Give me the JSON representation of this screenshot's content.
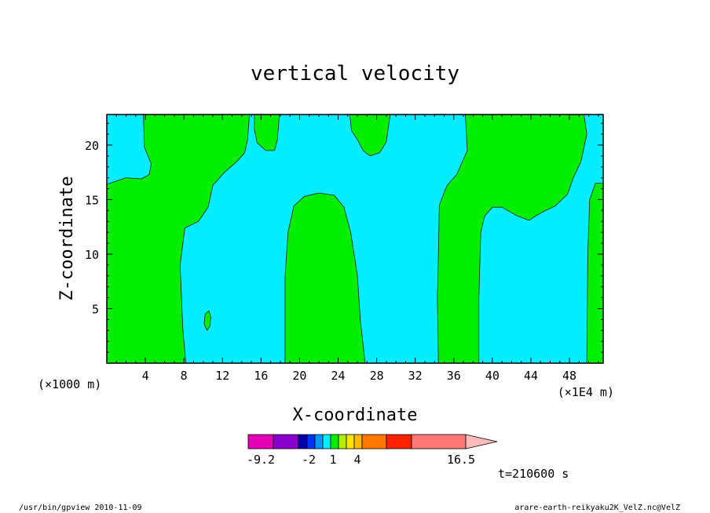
{
  "chart_data": {
    "type": "heatmap",
    "title": "vertical velocity",
    "xlabel": "X-coordinate",
    "ylabel": "Z-coordinate",
    "x_unit_left": "(×1000 m)",
    "x_unit_right": "(×1E4 m)",
    "xlim": [
      0,
      51.5
    ],
    "ylim": [
      0,
      22.8
    ],
    "x_ticks": [
      4,
      8,
      12,
      16,
      20,
      24,
      28,
      32,
      36,
      40,
      44,
      48
    ],
    "y_ticks": [
      5,
      10,
      15,
      20
    ],
    "colors": {
      "background_level": "#00eeff",
      "positive_level": "#00ee00"
    },
    "regions_positive": [
      {
        "name": "left-band",
        "points": [
          [
            0,
            0
          ],
          [
            8.2,
            0
          ],
          [
            7.9,
            3
          ],
          [
            7.6,
            9
          ],
          [
            8.1,
            12.4
          ],
          [
            9.5,
            13
          ],
          [
            10.5,
            14.3
          ],
          [
            11,
            16.3
          ],
          [
            12.2,
            17.5
          ],
          [
            13.5,
            18.5
          ],
          [
            14.3,
            19.3
          ],
          [
            14.6,
            20.5
          ],
          [
            14.8,
            22.8
          ],
          [
            3.8,
            22.8
          ],
          [
            3.9,
            19.8
          ],
          [
            4.6,
            18.3
          ],
          [
            4.4,
            17.3
          ],
          [
            3.6,
            16.9
          ],
          [
            2,
            17
          ],
          [
            0,
            16.4
          ]
        ]
      },
      {
        "name": "blob-x10",
        "points": [
          [
            10.4,
            3.0
          ],
          [
            10.7,
            3.4
          ],
          [
            10.8,
            4.2
          ],
          [
            10.6,
            4.8
          ],
          [
            10.2,
            4.5
          ],
          [
            10.1,
            3.6
          ]
        ]
      },
      {
        "name": "upper-blob-x17",
        "points": [
          [
            15.3,
            22.8
          ],
          [
            15.3,
            21.5
          ],
          [
            15.6,
            20.2
          ],
          [
            16.5,
            19.5
          ],
          [
            17.4,
            19.5
          ],
          [
            17.7,
            20.5
          ],
          [
            17.9,
            22.8
          ]
        ]
      },
      {
        "name": "upper-blob-x27",
        "points": [
          [
            25.2,
            22.8
          ],
          [
            25.4,
            21.3
          ],
          [
            26,
            20.5
          ],
          [
            26.6,
            19.5
          ],
          [
            27.3,
            19
          ],
          [
            28.3,
            19.3
          ],
          [
            29,
            20.3
          ],
          [
            29.4,
            22.8
          ]
        ]
      },
      {
        "name": "center-dome",
        "points": [
          [
            18.5,
            0
          ],
          [
            18.5,
            8
          ],
          [
            18.8,
            12
          ],
          [
            19.4,
            14.4
          ],
          [
            20.5,
            15.3
          ],
          [
            22,
            15.6
          ],
          [
            23.6,
            15.4
          ],
          [
            24.6,
            14.3
          ],
          [
            25.3,
            12
          ],
          [
            26,
            8
          ],
          [
            26.3,
            4
          ],
          [
            26.8,
            0
          ]
        ]
      },
      {
        "name": "right-band",
        "points": [
          [
            34.4,
            0
          ],
          [
            34.3,
            6
          ],
          [
            34.4,
            10
          ],
          [
            34.5,
            14.5
          ],
          [
            35.3,
            16.3
          ],
          [
            36.3,
            17.3
          ],
          [
            37.4,
            19.5
          ],
          [
            37.2,
            22.8
          ],
          [
            49.5,
            22.8
          ],
          [
            49.8,
            21
          ],
          [
            49.2,
            18.5
          ],
          [
            48.4,
            17
          ],
          [
            47.8,
            15.5
          ],
          [
            46.5,
            14.4
          ],
          [
            45.5,
            14
          ],
          [
            44.5,
            13.5
          ],
          [
            43.8,
            13.1
          ],
          [
            42.6,
            13.5
          ],
          [
            41,
            14.3
          ],
          [
            40,
            14.3
          ],
          [
            39.2,
            13.5
          ],
          [
            38.8,
            12
          ],
          [
            38.6,
            6
          ],
          [
            38.6,
            0
          ]
        ]
      },
      {
        "name": "far-right-strip",
        "points": [
          [
            49.8,
            0
          ],
          [
            49.9,
            10
          ],
          [
            50.1,
            15
          ],
          [
            50.7,
            16.5
          ],
          [
            51.5,
            16.5
          ],
          [
            51.5,
            0
          ]
        ]
      }
    ],
    "colorbar": {
      "colors": [
        "#e600b3",
        "#8800cc",
        "#0000aa",
        "#0033ff",
        "#0099ff",
        "#00eeff",
        "#00ee00",
        "#b2ee00",
        "#ffe600",
        "#ffbb00",
        "#ff7700",
        "#ff2200",
        "#ff7777",
        "#ffbbbb"
      ],
      "labels": [
        {
          "text": "-9.2",
          "index": 0.5
        },
        {
          "text": "-2",
          "index": 2.5
        },
        {
          "text": "1",
          "index": 3.5
        },
        {
          "text": "4",
          "index": 5.5
        },
        {
          "text": "16.5",
          "index": 8.5
        }
      ]
    },
    "time_label": "t=210600 s"
  },
  "footer": {
    "left": "/usr/bin/gpview  2010-11-09",
    "right": "arare-earth-reikyaku2K_VelZ.nc@VelZ"
  }
}
